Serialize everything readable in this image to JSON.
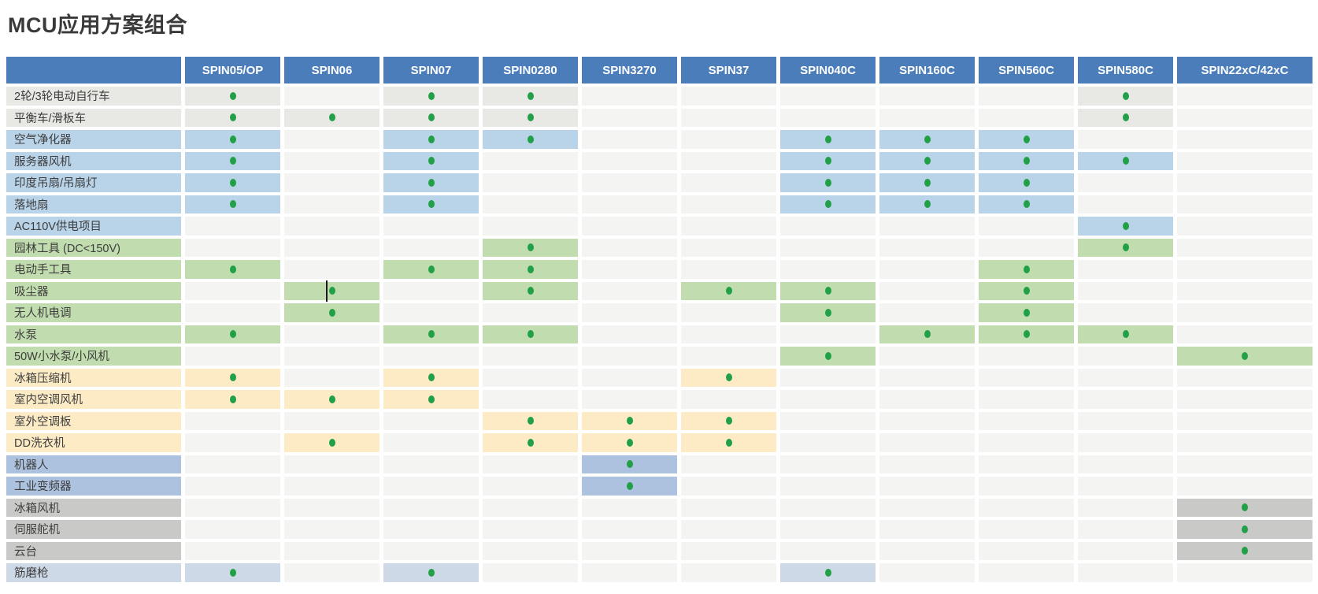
{
  "title": "MCU应用方案组合",
  "palette": {
    "header_bg": "#4a7dba",
    "header_text": "#ffffff",
    "empty_cell": "#f4f4f3",
    "dot": "#22a048",
    "row_colors": {
      "gray": "#e8e8e5",
      "blue": "#b9d3e9",
      "green": "#c1dcae",
      "yellow": "#fcebc5",
      "periwinkle": "#adc2de",
      "darkgray": "#c9c9c8",
      "paleblue": "#cdd9e6"
    }
  },
  "table": {
    "columns": [
      "SPIN05/OP",
      "SPIN06",
      "SPIN07",
      "SPIN0280",
      "SPIN3270",
      "SPIN37",
      "SPIN040C",
      "SPIN160C",
      "SPIN560C",
      "SPIN580C",
      "SPIN22xC/42xC"
    ],
    "rows": [
      {
        "label": "2轮/3轮电动自行车",
        "color": "gray",
        "dots": [
          0,
          2,
          3,
          9
        ]
      },
      {
        "label": "平衡车/滑板车",
        "color": "gray",
        "dots": [
          0,
          1,
          2,
          3,
          9
        ]
      },
      {
        "label": "空气净化器",
        "color": "blue",
        "dots": [
          0,
          2,
          3,
          6,
          7,
          8
        ]
      },
      {
        "label": "服务器风机",
        "color": "blue",
        "dots": [
          0,
          2,
          6,
          7,
          8,
          9
        ]
      },
      {
        "label": "印度吊扇/吊扇灯",
        "color": "blue",
        "dots": [
          0,
          2,
          6,
          7,
          8
        ]
      },
      {
        "label": "落地扇",
        "color": "blue",
        "dots": [
          0,
          2,
          6,
          7,
          8
        ]
      },
      {
        "label": "AC110V供电项目",
        "color": "blue",
        "dots": [
          9
        ]
      },
      {
        "label": "园林工具 (DC<150V)",
        "color": "green",
        "dots": [
          3,
          9
        ]
      },
      {
        "label": "电动手工具",
        "color": "green",
        "dots": [
          0,
          2,
          3,
          8
        ]
      },
      {
        "label": "吸尘器",
        "color": "green",
        "dots": [
          1,
          3,
          5,
          6,
          8
        ],
        "cursor_col": 1
      },
      {
        "label": "无人机电调",
        "color": "green",
        "dots": [
          1,
          6,
          8
        ]
      },
      {
        "label": "水泵",
        "color": "green",
        "dots": [
          0,
          2,
          3,
          7,
          8,
          9
        ]
      },
      {
        "label": "50W小水泵/小风机",
        "color": "green",
        "dots": [
          6,
          10
        ]
      },
      {
        "label": "冰箱压缩机",
        "color": "yellow",
        "dots": [
          0,
          2,
          5
        ]
      },
      {
        "label": "室内空调风机",
        "color": "yellow",
        "dots": [
          0,
          1,
          2
        ]
      },
      {
        "label": "室外空调板",
        "color": "yellow",
        "dots": [
          3,
          4,
          5
        ]
      },
      {
        "label": "DD洗衣机",
        "color": "yellow",
        "dots": [
          1,
          3,
          4,
          5
        ]
      },
      {
        "label": "机器人",
        "color": "periwinkle",
        "dots": [
          4
        ]
      },
      {
        "label": "工业变频器",
        "color": "periwinkle",
        "dots": [
          4
        ]
      },
      {
        "label": "冰箱风机",
        "color": "darkgray",
        "dots": [
          10
        ]
      },
      {
        "label": "伺服舵机",
        "color": "darkgray",
        "dots": [
          10
        ]
      },
      {
        "label": "云台",
        "color": "darkgray",
        "dots": [
          10
        ]
      },
      {
        "label": "筋磨枪",
        "color": "paleblue",
        "dots": [
          0,
          2,
          6
        ]
      }
    ]
  }
}
